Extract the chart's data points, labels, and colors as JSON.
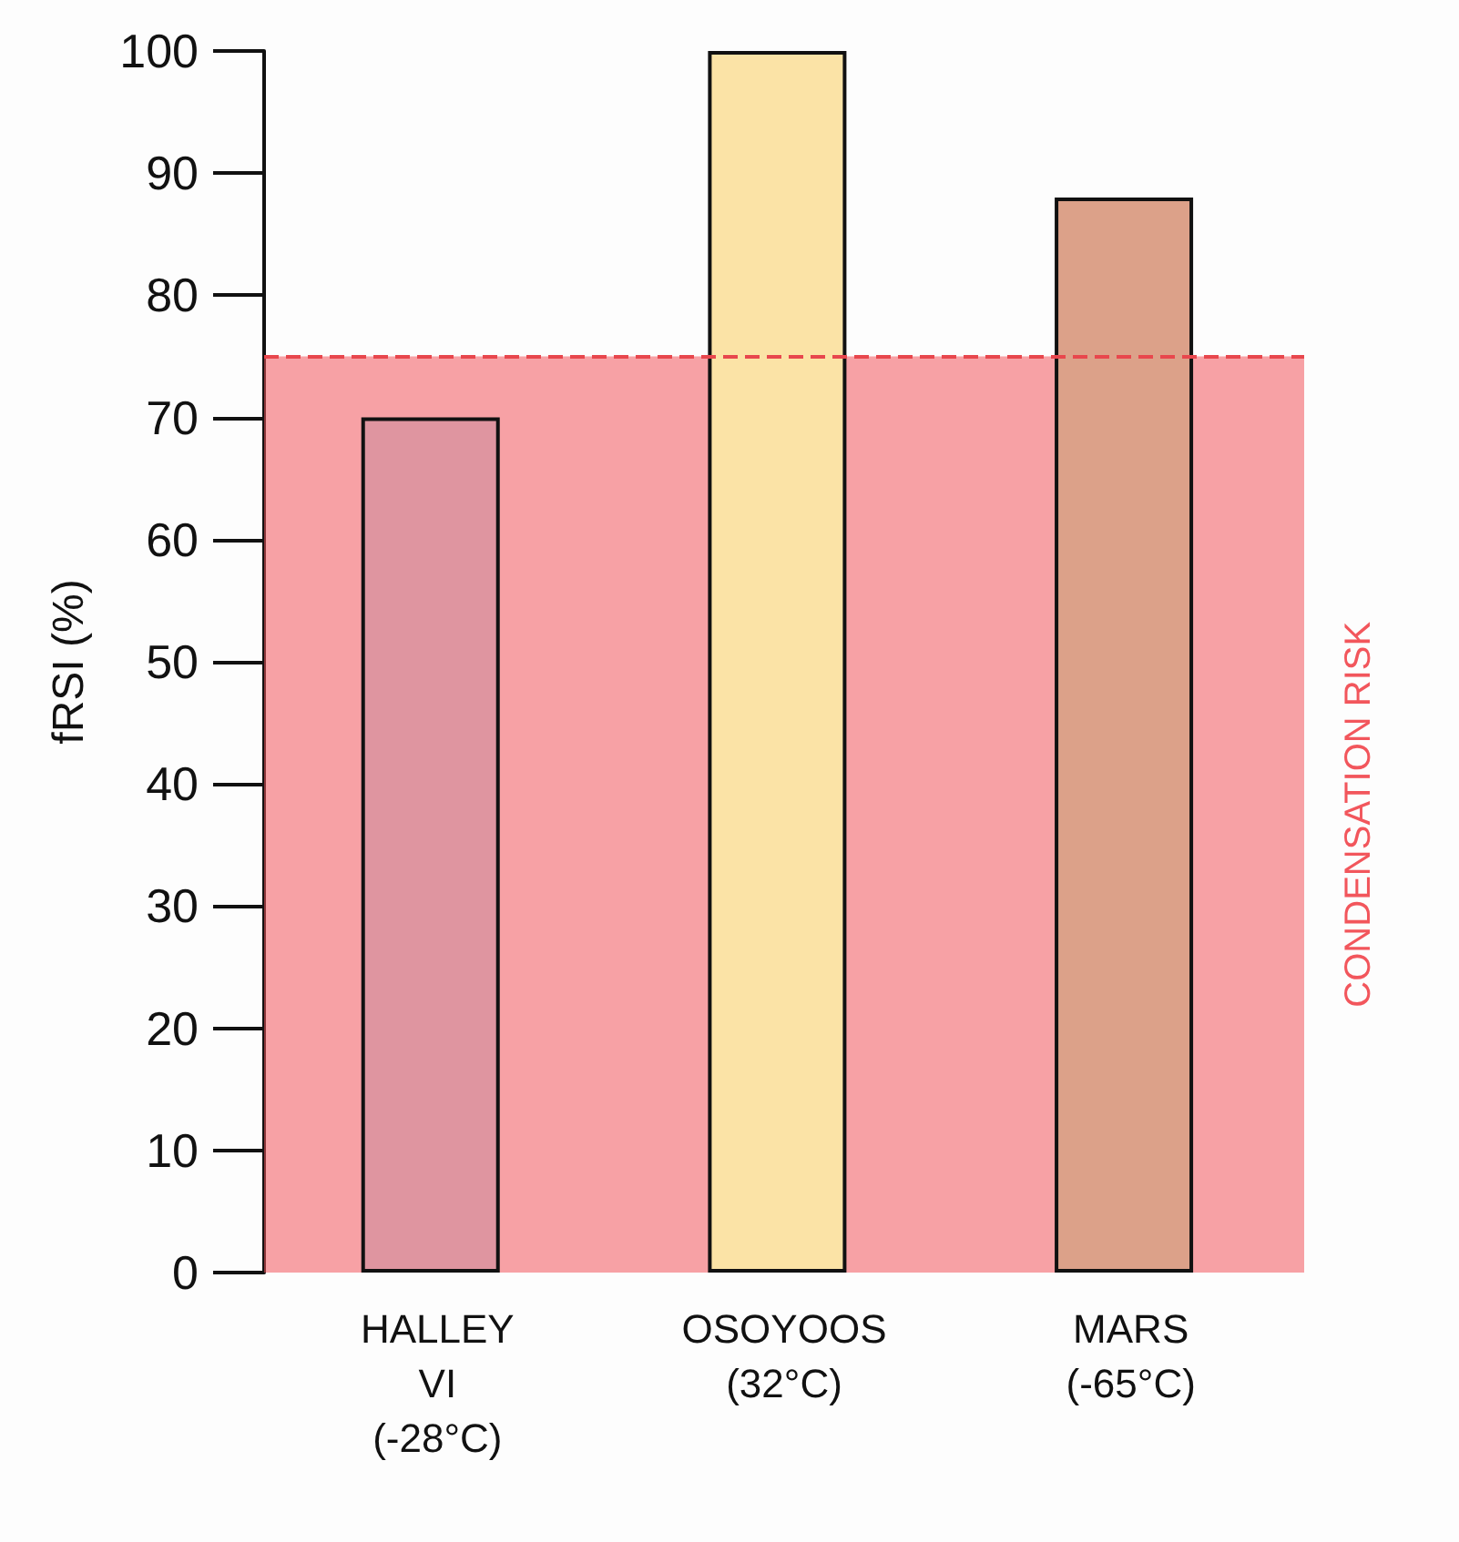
{
  "chart_data": {
    "type": "bar",
    "ylabel": "fRSI (%)",
    "categories": [
      "HALLEY\nVI\n(-28°C)",
      "OSOYOOS\n(32°C)",
      "MARS\n(-65°C)"
    ],
    "values": [
      70,
      100,
      88
    ],
    "colors": [
      "#df95a0",
      "#fbe3a6",
      "#dca189"
    ],
    "ylim": [
      0,
      100
    ],
    "yticks": [
      0,
      10,
      20,
      30,
      40,
      50,
      60,
      70,
      80,
      90,
      100
    ],
    "grid": false,
    "bands": [
      {
        "axis": "y",
        "from": 0,
        "to": 75,
        "label": "CONDENSATION RISK",
        "color": "#f2565c"
      }
    ],
    "ref_lines": [
      {
        "axis": "y",
        "value": 75,
        "label": null,
        "color": "#e8474d",
        "line_style": "dashed"
      }
    ]
  }
}
